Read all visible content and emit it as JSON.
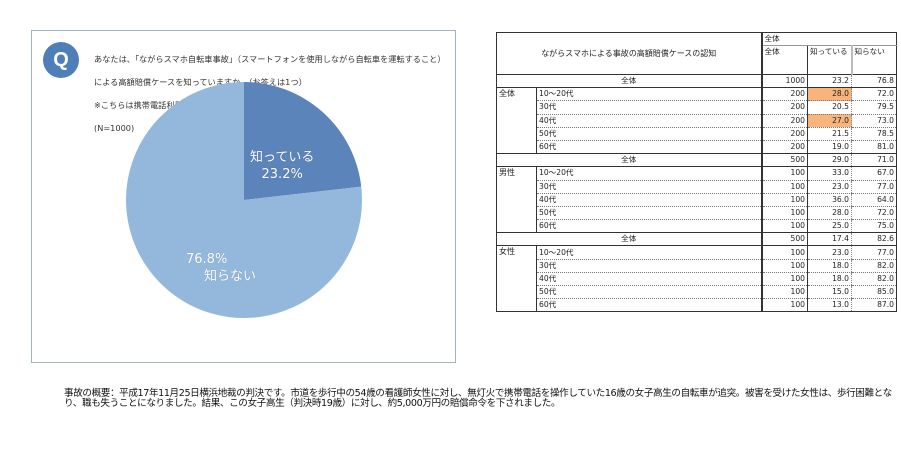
{
  "question": {
    "icon_label": "Q",
    "line1": "あなたは、「ながらスマホ自転車事故」（スマートフォンを使用しながら自転車を運転すること）",
    "line2": "による高額賠償ケースを知っていますか。（お答えは1つ）",
    "line3": "※こちらは携帯電話利用でのケースとなります。",
    "line4": "(N=1000)"
  },
  "chart_data": {
    "type": "pie",
    "title": "ながらスマホ自転車事故による高額賠償ケースの認知",
    "n": 1000,
    "categories": [
      "知っている",
      "知らない"
    ],
    "values": [
      23.2,
      76.8
    ],
    "colors": [
      "#5b84bb",
      "#94b8dc"
    ],
    "labels": {
      "known_name": "知っている",
      "known_pct": "23.2%",
      "unknown_name": "知らない",
      "unknown_pct": "76.8%"
    }
  },
  "table": {
    "title": "ながらスマホによる事故の高額賠償ケースの認知",
    "group_header": "全体",
    "columns": [
      "全体",
      "知っている",
      "知らない"
    ],
    "highlight_color": "#f9b47c",
    "overall": {
      "label": "全体",
      "n": "1000",
      "know": "23.2",
      "dont": "76.8"
    },
    "sections": [
      {
        "group": "全体",
        "rows": [
          {
            "age": "10～20代",
            "n": "200",
            "know": "28.0",
            "dont": "72.0",
            "hl": true
          },
          {
            "age": "30代",
            "n": "200",
            "know": "20.5",
            "dont": "79.5"
          },
          {
            "age": "40代",
            "n": "200",
            "know": "27.0",
            "dont": "73.0",
            "hl": true
          },
          {
            "age": "50代",
            "n": "200",
            "know": "21.5",
            "dont": "78.5"
          },
          {
            "age": "60代",
            "n": "200",
            "know": "19.0",
            "dont": "81.0"
          }
        ]
      },
      {
        "total": {
          "label": "全体",
          "n": "500",
          "know": "29.0",
          "dont": "71.0"
        },
        "group": "男性",
        "rows": [
          {
            "age": "10～20代",
            "n": "100",
            "know": "33.0",
            "dont": "67.0"
          },
          {
            "age": "30代",
            "n": "100",
            "know": "23.0",
            "dont": "77.0"
          },
          {
            "age": "40代",
            "n": "100",
            "know": "36.0",
            "dont": "64.0"
          },
          {
            "age": "50代",
            "n": "100",
            "know": "28.0",
            "dont": "72.0"
          },
          {
            "age": "60代",
            "n": "100",
            "know": "25.0",
            "dont": "75.0"
          }
        ]
      },
      {
        "total": {
          "label": "全体",
          "n": "500",
          "know": "17.4",
          "dont": "82.6"
        },
        "group": "女性",
        "rows": [
          {
            "age": "10～20代",
            "n": "100",
            "know": "23.0",
            "dont": "77.0"
          },
          {
            "age": "30代",
            "n": "100",
            "know": "18.0",
            "dont": "82.0"
          },
          {
            "age": "40代",
            "n": "100",
            "know": "18.0",
            "dont": "82.0"
          },
          {
            "age": "50代",
            "n": "100",
            "know": "15.0",
            "dont": "85.0"
          },
          {
            "age": "60代",
            "n": "100",
            "know": "13.0",
            "dont": "87.0"
          }
        ]
      }
    ]
  },
  "footer": {
    "text": "事故の概要：平成17年11月25日横浜地裁の判決です。市道を歩行中の54歳の看護師女性に対し、無灯火で携帯電話を操作していた16歳の女子高生の自転車が追突。被害を受けた女性は、歩行困難となり、職も失うことになりました。結果、この女子高生（判決時19歳）に対し、約5,000万円の賠償命令を下されました。"
  }
}
